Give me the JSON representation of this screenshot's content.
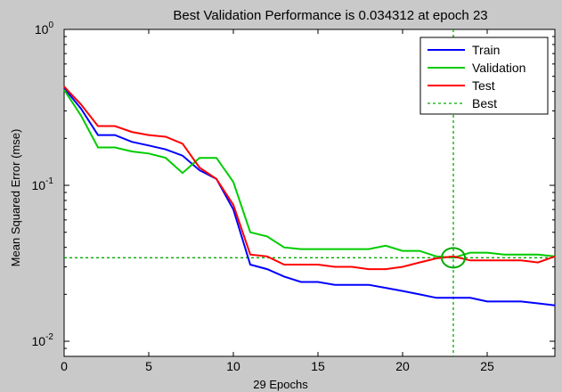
{
  "chart_data": {
    "type": "line",
    "title": "Best Validation Performance is 0.034312 at epoch 23",
    "xlabel": "29 Epochs",
    "ylabel": "Mean Squared Error  (mse)",
    "xlim": [
      0,
      29
    ],
    "ylim": [
      0.008,
      1
    ],
    "yscale": "log",
    "x_ticks": [
      0,
      5,
      10,
      15,
      20,
      25
    ],
    "x_tick_labels": [
      "0",
      "5",
      "10",
      "15",
      "20",
      "25"
    ],
    "y_ticks": [
      0.01,
      0.1,
      1
    ],
    "y_tick_labels": [
      {
        "base": "10",
        "exp": "-2"
      },
      {
        "base": "10",
        "exp": "-1"
      },
      {
        "base": "10",
        "exp": "0"
      }
    ],
    "legend_position": "top-right",
    "x": [
      0,
      1,
      2,
      3,
      4,
      5,
      6,
      7,
      8,
      9,
      10,
      11,
      12,
      13,
      14,
      15,
      16,
      17,
      18,
      19,
      20,
      21,
      22,
      23,
      24,
      25,
      26,
      27,
      28,
      29
    ],
    "series": [
      {
        "name": "Train",
        "color": "#0000ff",
        "values": [
          0.42,
          0.31,
          0.21,
          0.21,
          0.19,
          0.18,
          0.17,
          0.155,
          0.125,
          0.11,
          0.07,
          0.031,
          0.029,
          0.026,
          0.024,
          0.024,
          0.023,
          0.023,
          0.023,
          0.022,
          0.021,
          0.02,
          0.019,
          0.019,
          0.019,
          0.018,
          0.018,
          0.018,
          0.0175,
          0.017
        ]
      },
      {
        "name": "Validation",
        "color": "#00cc00",
        "values": [
          0.41,
          0.28,
          0.175,
          0.175,
          0.165,
          0.16,
          0.15,
          0.12,
          0.15,
          0.15,
          0.105,
          0.05,
          0.047,
          0.04,
          0.039,
          0.039,
          0.039,
          0.039,
          0.039,
          0.041,
          0.038,
          0.038,
          0.035,
          0.034312,
          0.037,
          0.037,
          0.036,
          0.036,
          0.036,
          0.035
        ]
      },
      {
        "name": "Test",
        "color": "#ff0000",
        "values": [
          0.43,
          0.33,
          0.24,
          0.24,
          0.22,
          0.21,
          0.205,
          0.185,
          0.13,
          0.11,
          0.075,
          0.036,
          0.035,
          0.031,
          0.031,
          0.031,
          0.03,
          0.03,
          0.029,
          0.029,
          0.03,
          0.032,
          0.034,
          0.035,
          0.033,
          0.033,
          0.033,
          0.033,
          0.032,
          0.035
        ]
      }
    ],
    "best": {
      "name": "Best",
      "color": "#00aa00",
      "epoch": 23,
      "value": 0.034312
    }
  }
}
